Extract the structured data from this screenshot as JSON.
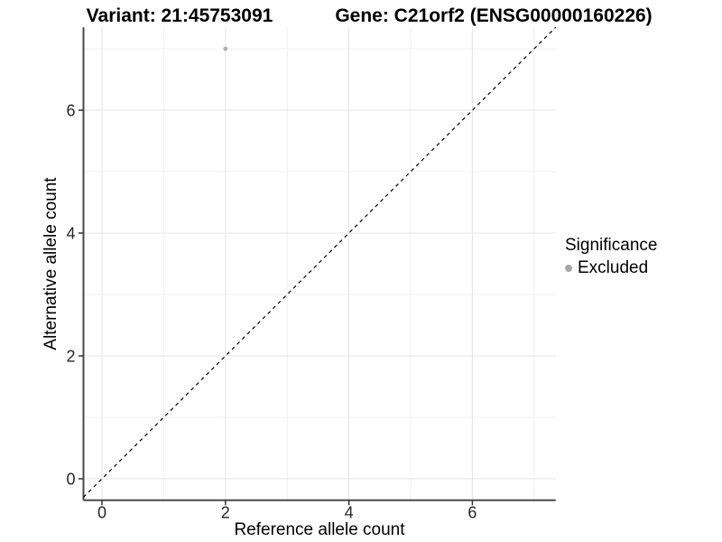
{
  "header": {
    "variant_title": "Variant: 21:45753091",
    "gene_title": "Gene: C21orf2 (ENSG00000160226)"
  },
  "chart_data": {
    "type": "scatter",
    "xlabel": "Reference allele count",
    "ylabel": "Alternative allele count",
    "xlim": [
      -0.3,
      7.35
    ],
    "ylim": [
      -0.35,
      7.35
    ],
    "x_major_ticks": [
      0,
      2,
      4,
      6
    ],
    "y_major_ticks": [
      0,
      2,
      4,
      6
    ],
    "x_minor_gridlines": [
      1,
      3,
      5,
      7
    ],
    "y_minor_gridlines": [
      1,
      3,
      5,
      7
    ],
    "grid": "major+minor",
    "identity_line": {
      "style": "dashed",
      "color": "#000000",
      "x1": -0.3,
      "y1": -0.3,
      "x2": 7.35,
      "y2": 7.35
    },
    "series": [
      {
        "name": "Excluded",
        "color": "#b0b0b0",
        "points": [
          {
            "x": 2,
            "y": 7
          }
        ]
      }
    ],
    "legend": {
      "title": "Significance",
      "position": "right",
      "items": [
        {
          "label": "Excluded",
          "color": "#a8a8a8"
        }
      ]
    },
    "style": {
      "major_grid_color": "#e4e4e4",
      "minor_grid_color": "#f0f0f0",
      "axis_line_color": "#4a4a4a",
      "tick_color": "#333333",
      "tick_label_color": "#262626"
    }
  }
}
